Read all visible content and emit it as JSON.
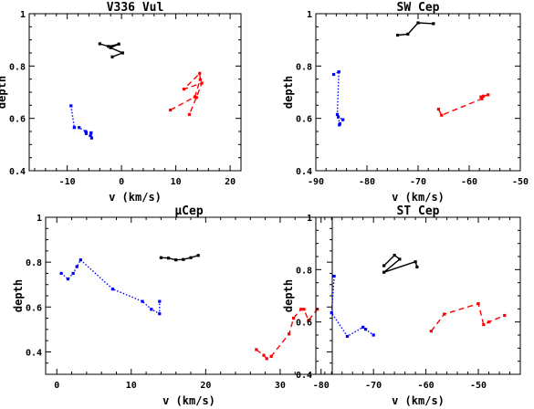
{
  "chart_data": [
    {
      "type": "line",
      "title": "V336 Vul",
      "xlabel": "v (km/s)",
      "ylabel": "depth",
      "xlim": [
        -17,
        22
      ],
      "ylim": [
        0.4,
        1.0
      ],
      "xticks": [
        "-10",
        "0",
        "10",
        "20"
      ],
      "yticks": [
        "0.4",
        "0.6",
        "0.8",
        "1"
      ],
      "series": [
        {
          "color": "#000000",
          "style": "solid",
          "points": [
            [
              -4,
              0.885
            ],
            [
              -2.4,
              0.875
            ],
            [
              -0.5,
              0.884
            ],
            [
              -2,
              0.87
            ],
            [
              0.2,
              0.85
            ],
            [
              -1.7,
              0.835
            ]
          ]
        },
        {
          "color": "#0000ff",
          "style": "dotted",
          "points": [
            [
              -9.3,
              0.648
            ],
            [
              -8.7,
              0.565
            ],
            [
              -7.8,
              0.565
            ],
            [
              -6.6,
              0.55
            ],
            [
              -5.6,
              0.545
            ],
            [
              -5.7,
              0.535
            ],
            [
              -5.5,
              0.525
            ],
            [
              -6.5,
              0.542
            ]
          ]
        },
        {
          "color": "#ff0000",
          "style": "dashed",
          "points": [
            [
              9,
              0.632
            ],
            [
              13.5,
              0.682
            ],
            [
              14.5,
              0.748
            ],
            [
              14.4,
              0.772
            ],
            [
              11.5,
              0.712
            ],
            [
              14.8,
              0.735
            ],
            [
              13.8,
              0.68
            ],
            [
              12.5,
              0.615
            ]
          ]
        }
      ]
    },
    {
      "type": "line",
      "title": "SW Cep",
      "xlabel": "v (km/s)",
      "ylabel": "depth",
      "xlim": [
        -90,
        -50
      ],
      "ylim": [
        0.4,
        1.0
      ],
      "xticks": [
        "-90",
        "-80",
        "-70",
        "-60",
        "-50"
      ],
      "yticks": [
        "0.4",
        "0.6",
        "0.8",
        "1"
      ],
      "series": [
        {
          "color": "#000000",
          "style": "solid",
          "points": [
            [
              -74,
              0.918
            ],
            [
              -72,
              0.922
            ],
            [
              -70,
              0.965
            ],
            [
              -67,
              0.962
            ]
          ]
        },
        {
          "color": "#0000ff",
          "style": "dotted",
          "points": [
            [
              -86.5,
              0.768
            ],
            [
              -85.5,
              0.778
            ],
            [
              -85.8,
              0.615
            ],
            [
              -85.3,
              0.58
            ],
            [
              -85.4,
              0.575
            ],
            [
              -84.7,
              0.595
            ],
            [
              -85.6,
              0.605
            ]
          ]
        },
        {
          "color": "#ff0000",
          "style": "dashed",
          "points": [
            [
              -66,
              0.635
            ],
            [
              -65.4,
              0.612
            ],
            [
              -57.5,
              0.675
            ],
            [
              -57.2,
              0.685
            ],
            [
              -56.3,
              0.69
            ],
            [
              -57.7,
              0.682
            ]
          ]
        }
      ]
    },
    {
      "type": "line",
      "title": "μCep",
      "xlabel": "v (km/s)",
      "ylabel": "depth",
      "xlim": [
        -1.5,
        37
      ],
      "ylim": [
        0.3,
        1.0
      ],
      "xticks": [
        "0",
        "10",
        "20",
        "30"
      ],
      "yticks": [
        "0.4",
        "0.6",
        "0.8",
        "1"
      ],
      "series": [
        {
          "color": "#000000",
          "style": "solid",
          "points": [
            [
              14,
              0.82
            ],
            [
              15,
              0.818
            ],
            [
              16,
              0.81
            ],
            [
              17,
              0.812
            ],
            [
              18,
              0.82
            ],
            [
              19,
              0.83
            ]
          ]
        },
        {
          "color": "#0000ff",
          "style": "dotted",
          "points": [
            [
              0.6,
              0.75
            ],
            [
              1.5,
              0.725
            ],
            [
              2.2,
              0.75
            ],
            [
              2.7,
              0.78
            ],
            [
              3.2,
              0.81
            ],
            [
              7.5,
              0.68
            ],
            [
              11.5,
              0.625
            ],
            [
              12.7,
              0.59
            ],
            [
              13.8,
              0.57
            ],
            [
              13.8,
              0.625
            ]
          ]
        },
        {
          "color": "#ff0000",
          "style": "dashed",
          "points": [
            [
              26.8,
              0.41
            ],
            [
              27.8,
              0.385
            ],
            [
              28.2,
              0.37
            ],
            [
              28.8,
              0.38
            ],
            [
              31.2,
              0.48
            ],
            [
              31.8,
              0.55
            ],
            [
              32.8,
              0.59
            ],
            [
              33.2,
              0.59
            ],
            [
              33.8,
              0.54
            ],
            [
              35,
              0.59
            ]
          ]
        }
      ]
    },
    {
      "type": "line",
      "title": "ST Cep",
      "xlabel": "v (km/s)",
      "ylabel": "depth",
      "xlim": [
        -81,
        -42
      ],
      "ylim": [
        0.4,
        1.0
      ],
      "xticks": [
        "-80",
        "-70",
        "-60",
        "-50"
      ],
      "yticks": [
        "0.4",
        "0.6",
        "0.8",
        "1"
      ],
      "series": [
        {
          "color": "#000000",
          "style": "solid",
          "points": [
            [
              -68,
              0.815
            ],
            [
              -66,
              0.855
            ],
            [
              -65,
              0.84
            ],
            [
              -68,
              0.79
            ],
            [
              -62,
              0.83
            ],
            [
              -61.7,
              0.81
            ]
          ]
        },
        {
          "color": "#0000ff",
          "style": "dotted",
          "points": [
            [
              -77.5,
              0.775
            ],
            [
              -78,
              0.635
            ],
            [
              -75,
              0.545
            ],
            [
              -72,
              0.58
            ],
            [
              -71.5,
              0.572
            ],
            [
              -70,
              0.55
            ]
          ]
        },
        {
          "color": "#ff0000",
          "style": "dashed",
          "points": [
            [
              -59,
              0.565
            ],
            [
              -56.5,
              0.63
            ],
            [
              -50,
              0.67
            ],
            [
              -49,
              0.59
            ],
            [
              -48,
              0.6
            ],
            [
              -45,
              0.625
            ]
          ]
        }
      ]
    }
  ]
}
